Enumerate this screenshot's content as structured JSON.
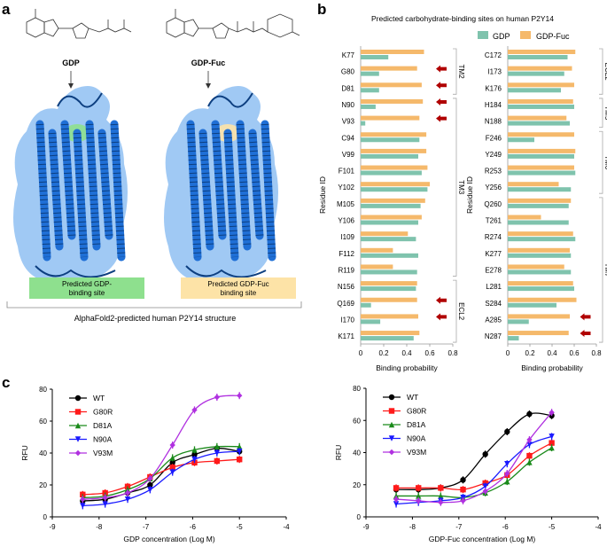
{
  "panel_labels": {
    "a": "a",
    "b": "b",
    "c": "c"
  },
  "panel_a": {
    "molecule_left": "GDP",
    "molecule_right": "GDP-Fuc",
    "site_left": [
      "Predicted GDP-",
      "binding site"
    ],
    "site_right": [
      "Predicted GDP-Fuc",
      "binding site"
    ],
    "caption": "AlphaFold2-predicted human P2Y14 structure",
    "colors": {
      "protein": "#1f6fd6",
      "surface": "#8fc0f2",
      "gdp_site": "#8ee08e",
      "fuc_site": "#fde3a7"
    }
  },
  "panel_b": {
    "title": "Predicted carbohydrate-binding sites on human P2Y14",
    "legend": [
      "GDP",
      "GDP-Fuc"
    ],
    "colors": {
      "GDP": "#7fc3ad",
      "GDP-Fuc": "#f5b96b",
      "arrow": "#b00000"
    }
  },
  "chart_data": [
    {
      "type": "bar",
      "orientation": "horizontal",
      "ylabel": "Residue ID",
      "xlabel": "Binding probability",
      "xlim": [
        0,
        0.8
      ],
      "xticks": [
        "0",
        "0.2",
        "0.4",
        "0.6",
        "0.8"
      ],
      "categories": [
        "K77",
        "G80",
        "D81",
        "N90",
        "V93",
        "C94",
        "V99",
        "F101",
        "Y102",
        "M105",
        "Y106",
        "I109",
        "F112",
        "R119",
        "N156",
        "Q169",
        "I170",
        "K171"
      ],
      "series": [
        {
          "name": "GDP-Fuc",
          "values": [
            0.55,
            0.49,
            0.53,
            0.54,
            0.51,
            0.57,
            0.57,
            0.58,
            0.6,
            0.56,
            0.53,
            0.41,
            0.28,
            0.28,
            0.49,
            0.49,
            0.5,
            0.51
          ]
        },
        {
          "name": "GDP",
          "values": [
            0.24,
            0.16,
            0.16,
            0.13,
            0.04,
            0.51,
            0.5,
            0.53,
            0.58,
            0.52,
            0.5,
            0.48,
            0.5,
            0.49,
            0.48,
            0.09,
            0.17,
            0.46
          ]
        }
      ],
      "highlighted": [
        "G80",
        "D81",
        "N90",
        "V93",
        "Q169",
        "I170"
      ],
      "regions": [
        {
          "label": "TM2",
          "from": "K77",
          "to": "D81"
        },
        {
          "label": "TM3",
          "from": "N90",
          "to": "R119"
        },
        {
          "label": "ECL2",
          "from": "N156",
          "to": "K171"
        }
      ]
    },
    {
      "type": "bar",
      "orientation": "horizontal",
      "ylabel": "Residue ID",
      "xlabel": "Binding probability",
      "xlim": [
        0,
        0.8
      ],
      "xticks": [
        "0",
        "0.2",
        "0.4",
        "0.6",
        "0.8"
      ],
      "categories": [
        "C172",
        "I173",
        "K176",
        "H184",
        "N188",
        "F246",
        "Y249",
        "R253",
        "Y256",
        "Q260",
        "T261",
        "R274",
        "K277",
        "E278",
        "L281",
        "S284",
        "A285",
        "N287"
      ],
      "series": [
        {
          "name": "GDP-Fuc",
          "values": [
            0.61,
            0.58,
            0.6,
            0.59,
            0.53,
            0.6,
            0.61,
            0.6,
            0.46,
            0.57,
            0.3,
            0.59,
            0.56,
            0.51,
            0.59,
            0.62,
            0.56,
            0.55
          ]
        },
        {
          "name": "GDP",
          "values": [
            0.54,
            0.51,
            0.48,
            0.6,
            0.56,
            0.24,
            0.6,
            0.61,
            0.57,
            0.55,
            0.55,
            0.61,
            0.57,
            0.57,
            0.6,
            0.44,
            0.19,
            0.1
          ]
        }
      ],
      "highlighted": [
        "A285",
        "N287"
      ],
      "regions": [
        {
          "label": "ECL2",
          "from": "C172",
          "to": "K176"
        },
        {
          "label": "TM5",
          "from": "H184",
          "to": "N188"
        },
        {
          "label": "TM6",
          "from": "F246",
          "to": "Y256"
        },
        {
          "label": "TM7",
          "from": "Q260",
          "to": "N287"
        }
      ]
    },
    {
      "type": "line",
      "xlabel": "GDP concentration (Log M)",
      "ylabel": "RFU",
      "xlim": [
        -9,
        -4
      ],
      "ylim": [
        0,
        80
      ],
      "xticks": [
        "-9",
        "-8",
        "-7",
        "-6",
        "-5",
        "-4"
      ],
      "yticks": [
        "0",
        "20",
        "40",
        "60",
        "80"
      ],
      "legend_position": "top-left",
      "x": [
        -8.35,
        -7.87,
        -7.39,
        -6.91,
        -6.43,
        -5.96,
        -5.48,
        -5.0
      ],
      "series": [
        {
          "name": "WT",
          "color": "#000000",
          "marker": "circle",
          "values": [
            10,
            11,
            15,
            20,
            34,
            39,
            43,
            41
          ]
        },
        {
          "name": "G80R",
          "color": "#ff1a1a",
          "marker": "square",
          "values": [
            14,
            15,
            19,
            25,
            31,
            34,
            35,
            36
          ]
        },
        {
          "name": "D81A",
          "color": "#1a8a1a",
          "marker": "triangle-up",
          "values": [
            12,
            13,
            17,
            24,
            37,
            42,
            44,
            44
          ]
        },
        {
          "name": "N90A",
          "color": "#1a1aff",
          "marker": "triangle-down",
          "values": [
            7,
            8,
            11,
            17,
            28,
            36,
            40,
            41
          ]
        },
        {
          "name": "V93M",
          "color": "#b030e0",
          "marker": "diamond",
          "values": [
            11,
            12,
            15,
            24,
            45,
            67,
            75,
            76
          ]
        }
      ]
    },
    {
      "type": "line",
      "xlabel": "GDP-Fuc concentration (Log M)",
      "ylabel": "RFU",
      "xlim": [
        -9,
        -4
      ],
      "ylim": [
        0,
        80
      ],
      "xticks": [
        "-9",
        "-8",
        "-7",
        "-6",
        "-5",
        "-4"
      ],
      "yticks": [
        "0",
        "20",
        "40",
        "60",
        "80"
      ],
      "legend_position": "top-left",
      "x": [
        -8.35,
        -7.87,
        -7.39,
        -6.91,
        -6.43,
        -5.96,
        -5.48,
        -5.0
      ],
      "series": [
        {
          "name": "WT",
          "color": "#000000",
          "marker": "circle",
          "values": [
            17,
            17,
            18,
            23,
            39,
            53,
            64,
            63
          ]
        },
        {
          "name": "G80R",
          "color": "#ff1a1a",
          "marker": "square",
          "values": [
            18,
            18,
            18,
            17,
            21,
            26,
            38,
            46
          ]
        },
        {
          "name": "D81A",
          "color": "#1a8a1a",
          "marker": "triangle-up",
          "values": [
            13,
            13,
            13,
            12,
            15,
            22,
            34,
            43
          ]
        },
        {
          "name": "N90A",
          "color": "#1a1aff",
          "marker": "triangle-down",
          "values": [
            8,
            9,
            10,
            12,
            19,
            33,
            45,
            50
          ]
        },
        {
          "name": "V93M",
          "color": "#b030e0",
          "marker": "diamond",
          "values": [
            11,
            10,
            9,
            10,
            16,
            27,
            48,
            65
          ]
        }
      ]
    }
  ]
}
